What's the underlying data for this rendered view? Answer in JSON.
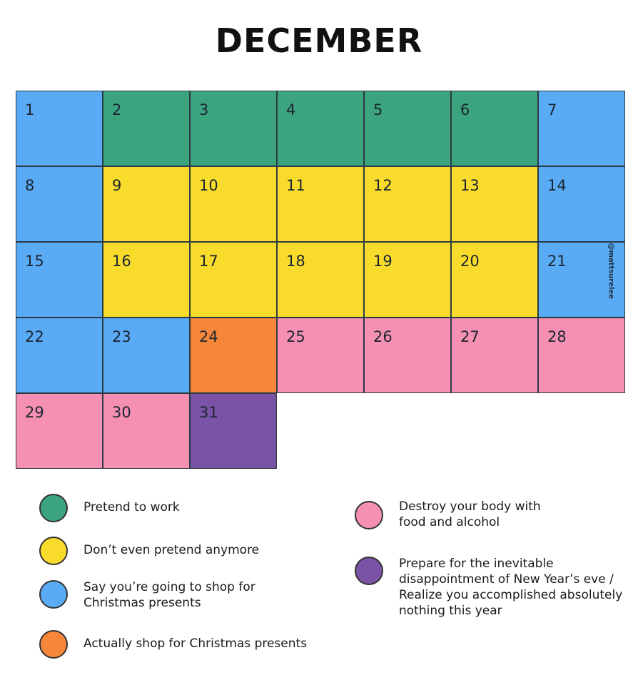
{
  "title": "DECEMBER",
  "watermark": "@mattsurelee",
  "colors": {
    "work": "#3ba47f",
    "none": "#f9dc2b",
    "say_shop": "#5aabf6",
    "shop": "#f5863a",
    "destroy": "#f590b2",
    "nye": "#7a52a6"
  },
  "days": [
    {
      "n": "1",
      "c": "say_shop"
    },
    {
      "n": "2",
      "c": "work"
    },
    {
      "n": "3",
      "c": "work"
    },
    {
      "n": "4",
      "c": "work"
    },
    {
      "n": "5",
      "c": "work"
    },
    {
      "n": "6",
      "c": "work"
    },
    {
      "n": "7",
      "c": "say_shop"
    },
    {
      "n": "8",
      "c": "say_shop"
    },
    {
      "n": "9",
      "c": "none"
    },
    {
      "n": "10",
      "c": "none"
    },
    {
      "n": "11",
      "c": "none"
    },
    {
      "n": "12",
      "c": "none"
    },
    {
      "n": "13",
      "c": "none"
    },
    {
      "n": "14",
      "c": "say_shop"
    },
    {
      "n": "15",
      "c": "say_shop"
    },
    {
      "n": "16",
      "c": "none"
    },
    {
      "n": "17",
      "c": "none"
    },
    {
      "n": "18",
      "c": "none"
    },
    {
      "n": "19",
      "c": "none"
    },
    {
      "n": "20",
      "c": "none"
    },
    {
      "n": "21",
      "c": "say_shop"
    },
    {
      "n": "22",
      "c": "say_shop"
    },
    {
      "n": "23",
      "c": "say_shop"
    },
    {
      "n": "24",
      "c": "shop"
    },
    {
      "n": "25",
      "c": "destroy"
    },
    {
      "n": "26",
      "c": "destroy"
    },
    {
      "n": "27",
      "c": "destroy"
    },
    {
      "n": "28",
      "c": "destroy"
    },
    {
      "n": "29",
      "c": "destroy"
    },
    {
      "n": "30",
      "c": "destroy"
    },
    {
      "n": "31",
      "c": "nye"
    }
  ],
  "legend": [
    {
      "key": "work",
      "label": "Pretend to work"
    },
    {
      "key": "none",
      "label": "Don’t even pretend anymore"
    },
    {
      "key": "say_shop",
      "label": "Say you’re going to shop for Christmas presents"
    },
    {
      "key": "shop",
      "label": "Actually shop for Christmas presents"
    },
    {
      "key": "destroy",
      "label": "Destroy your body with food and alcohol"
    },
    {
      "key": "nye",
      "label": "Prepare for the inevitable disappointment of New Year’s eve / Realize you accomplished absolutely nothing this year"
    }
  ]
}
